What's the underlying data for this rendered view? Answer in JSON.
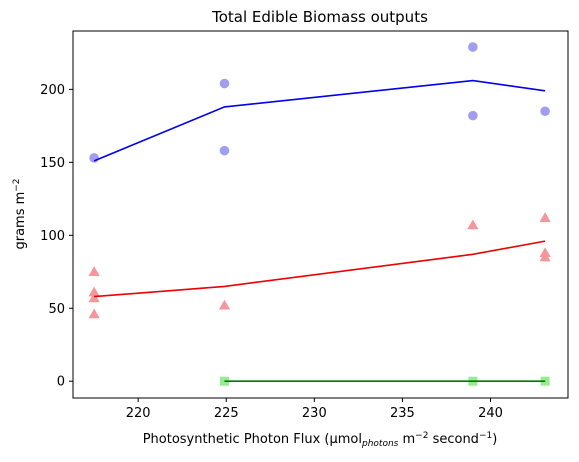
{
  "chart_data": {
    "type": "scatter",
    "title": "Total Edible Biomass outputs",
    "xlabel": {
      "prefix": "Photosynthetic Photon Flux (μmol",
      "sub": "photons",
      "mid1": " m",
      "sup1": "−2",
      "mid2": " second",
      "sup2": "−1",
      "suffix": ")"
    },
    "ylabel": {
      "main": "grams m",
      "sup": "−2"
    },
    "xlim": [
      216.3,
      244.4
    ],
    "ylim": [
      -11.5,
      240
    ],
    "xticks": [
      220,
      225,
      230,
      235,
      240
    ],
    "yticks": [
      0,
      50,
      100,
      150,
      200
    ],
    "grid": false,
    "series": [
      {
        "color": "#0000ee",
        "marker": "circle",
        "marker_color": "#a19ef0",
        "points": [
          {
            "x": 217.5,
            "y": 153
          },
          {
            "x": 224.9,
            "y": 204
          },
          {
            "x": 224.9,
            "y": 158
          },
          {
            "x": 239.0,
            "y": 229
          },
          {
            "x": 239.0,
            "y": 182
          },
          {
            "x": 243.1,
            "y": 185
          }
        ],
        "line": [
          {
            "x": 217.5,
            "y": 151
          },
          {
            "x": 224.9,
            "y": 188
          },
          {
            "x": 239.0,
            "y": 206
          },
          {
            "x": 243.1,
            "y": 199
          }
        ]
      },
      {
        "color": "#ee0000",
        "marker": "triangle",
        "marker_color": "#f3979a",
        "points": [
          {
            "x": 217.5,
            "y": 75
          },
          {
            "x": 217.5,
            "y": 61
          },
          {
            "x": 217.5,
            "y": 57
          },
          {
            "x": 217.5,
            "y": 46
          },
          {
            "x": 224.9,
            "y": 52
          },
          {
            "x": 239.0,
            "y": 107
          },
          {
            "x": 243.1,
            "y": 112
          },
          {
            "x": 243.1,
            "y": 88
          },
          {
            "x": 243.1,
            "y": 85
          }
        ],
        "line": [
          {
            "x": 217.5,
            "y": 58
          },
          {
            "x": 224.9,
            "y": 65
          },
          {
            "x": 239.0,
            "y": 87
          },
          {
            "x": 243.1,
            "y": 96
          }
        ]
      },
      {
        "color": "#007700",
        "marker": "square",
        "marker_color": "#98ec90",
        "points": [
          {
            "x": 224.9,
            "y": 0
          },
          {
            "x": 239.0,
            "y": 0
          },
          {
            "x": 243.1,
            "y": 0
          }
        ],
        "line": [
          {
            "x": 224.9,
            "y": 0
          },
          {
            "x": 239.0,
            "y": 0
          },
          {
            "x": 243.1,
            "y": 0
          }
        ]
      }
    ]
  }
}
